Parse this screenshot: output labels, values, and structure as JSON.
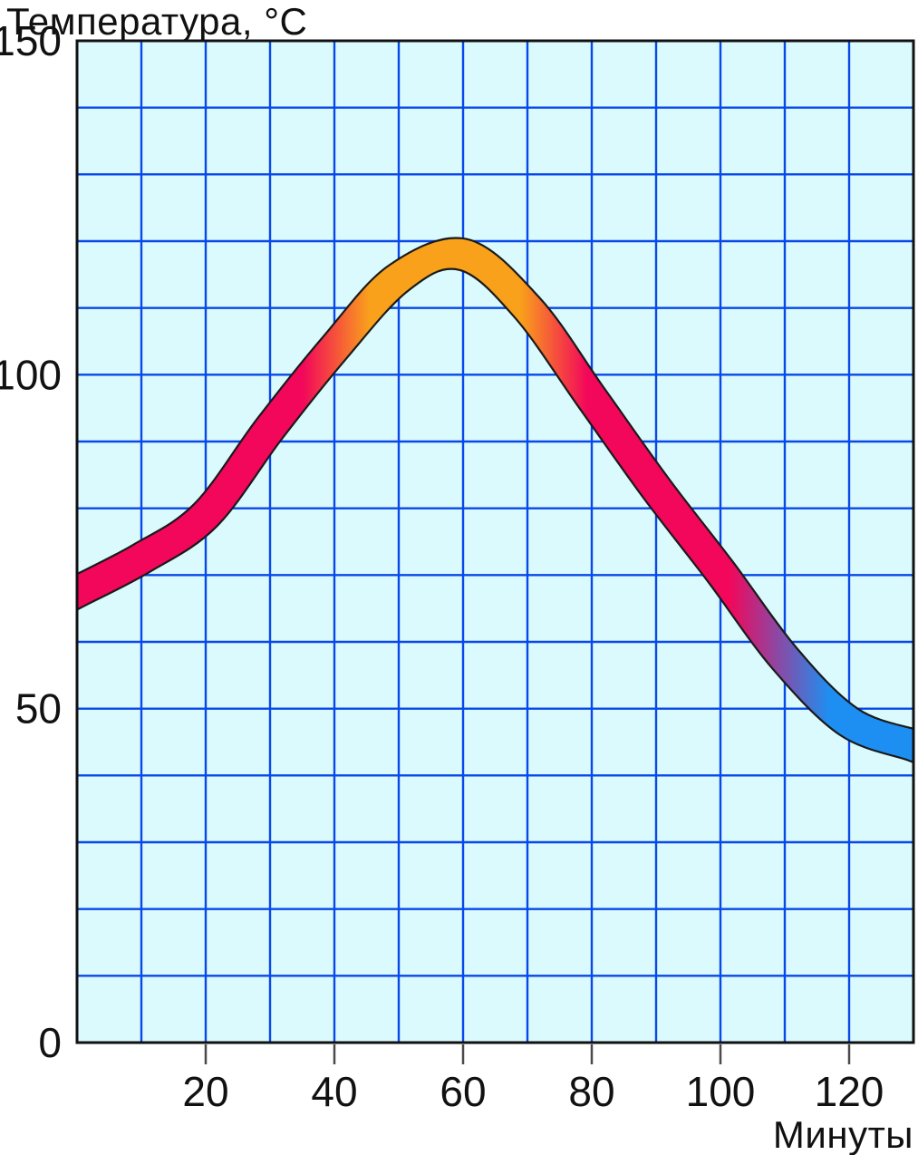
{
  "chart": {
    "title": "Температура, °C",
    "x_axis_label": "Минуты"
  },
  "chart_data": {
    "type": "area",
    "title": "Температура, °C",
    "xlabel": "Минуты",
    "ylabel": "Температура, °C",
    "description": "Thick smooth band showing temperature over time; band is red below ~100°C, orange above ~100°C near the peak, fading to blue as it cools below ~55°C at the right end",
    "x": [
      0,
      10,
      20,
      30,
      40,
      50,
      60,
      70,
      80,
      90,
      100,
      110,
      120,
      130
    ],
    "band_center_temp": [
      67.5,
      72.5,
      79,
      92,
      104,
      114.5,
      118,
      110,
      96.5,
      83,
      70.5,
      57.5,
      48,
      44.5
    ],
    "band_width_deg": 7,
    "peak": {
      "x": 60,
      "temp": 118
    },
    "xlim": [
      0,
      130
    ],
    "ylim": [
      0,
      150
    ],
    "x_tick_labels": [
      "20",
      "40",
      "60",
      "80",
      "100",
      "120"
    ],
    "x_tick_values": [
      20,
      40,
      60,
      80,
      100,
      120
    ],
    "y_tick_labels": [
      "0",
      "50",
      "100",
      "150"
    ],
    "y_tick_values": [
      0,
      50,
      100,
      150
    ],
    "grid": "on",
    "grid_step": {
      "x": 10,
      "y": 10
    },
    "legend": "none",
    "colors": {
      "plot_background": "#DAFAFD",
      "grid_line": "#0847EA",
      "axis_border": "#111111",
      "tick_mark": "#4A4A4A",
      "text": "#111111",
      "band_outline": "#1A1A1A",
      "band_red": "#F2075A",
      "band_orange": "#F9A11B",
      "band_blue": "#1D8FF2"
    },
    "gradient_stops": [
      {
        "offset": 0.0,
        "color": "#F2075A"
      },
      {
        "offset": 0.27,
        "color": "#F2075A"
      },
      {
        "offset": 0.35,
        "color": "#F9A11B"
      },
      {
        "offset": 0.53,
        "color": "#F9A11B"
      },
      {
        "offset": 0.61,
        "color": "#F2075A"
      },
      {
        "offset": 0.78,
        "color": "#F2075A"
      },
      {
        "offset": 0.9,
        "color": "#1D8FF2"
      },
      {
        "offset": 1.0,
        "color": "#1D8FF2"
      }
    ]
  }
}
